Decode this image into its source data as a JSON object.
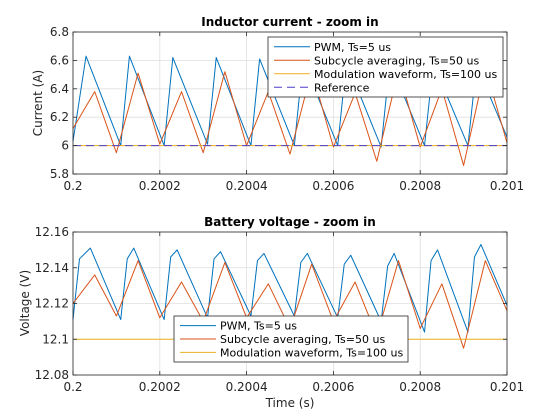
{
  "chart_data": [
    {
      "type": "line",
      "title": "Inductor current - zoom in",
      "xlabel": "",
      "ylabel": "Current (A)",
      "xlim": [
        0.2,
        0.201
      ],
      "ylim": [
        5.8,
        6.8
      ],
      "xticks": [
        "0.2",
        "0.2002",
        "0.2004",
        "0.2006",
        "0.2008",
        "0.201"
      ],
      "xtick_values": [
        0.2,
        0.2002,
        0.2004,
        0.2006,
        0.2008,
        0.201
      ],
      "yticks": [
        "5.8",
        "6",
        "6.2",
        "6.4",
        "6.6",
        "6.8"
      ],
      "ytick_values": [
        5.8,
        6.0,
        6.2,
        6.4,
        6.6,
        6.8
      ],
      "grid": true,
      "legend_position": "top-right",
      "series": [
        {
          "name": "PWM, Ts=5 us",
          "color": "#0072BD",
          "dash": "",
          "x": [
            0.2,
            0.20003,
            0.20011,
            0.20013,
            0.20021,
            0.20023,
            0.20031,
            0.20033,
            0.20041,
            0.20043,
            0.20051,
            0.20053,
            0.20061,
            0.20063,
            0.20071,
            0.20073,
            0.20081,
            0.20083,
            0.20091,
            0.20093,
            0.201
          ],
          "y": [
            6.03,
            6.63,
            6.0,
            6.63,
            6.0,
            6.62,
            6.01,
            6.62,
            6.0,
            6.61,
            6.0,
            6.6,
            6.0,
            6.59,
            5.99,
            6.59,
            6.0,
            6.58,
            6.0,
            6.57,
            6.06
          ]
        },
        {
          "name": "Subcycle averaging, Ts=50 us",
          "color": "#D95319",
          "dash": "",
          "x": [
            0.2,
            0.20005,
            0.2001,
            0.20015,
            0.2002,
            0.20025,
            0.2003,
            0.20035,
            0.2004,
            0.20045,
            0.2005,
            0.20055,
            0.2006,
            0.20065,
            0.2007,
            0.20075,
            0.2008,
            0.20085,
            0.2009,
            0.20095,
            0.201
          ],
          "y": [
            6.12,
            6.38,
            5.95,
            6.51,
            6.01,
            6.38,
            5.95,
            6.52,
            6.0,
            6.38,
            5.94,
            6.53,
            5.99,
            6.37,
            5.89,
            6.53,
            5.99,
            6.4,
            5.86,
            6.55,
            6.02
          ]
        },
        {
          "name": "Modulation waveform, Ts=100 us",
          "color": "#EDB120",
          "dash": "",
          "x": [
            0.2,
            0.201
          ],
          "y": [
            6.0,
            6.0
          ]
        },
        {
          "name": "Reference",
          "color": "#4B3FC9",
          "dash": "8,5",
          "x": [
            0.2,
            0.201
          ],
          "y": [
            6.0,
            6.0
          ]
        }
      ]
    },
    {
      "type": "line",
      "title": "Battery voltage - zoom in",
      "xlabel": "Time (s)",
      "ylabel": "Voltage (V)",
      "xlim": [
        0.2,
        0.201
      ],
      "ylim": [
        12.08,
        12.16
      ],
      "xticks": [
        "0.2",
        "0.2002",
        "0.2004",
        "0.2006",
        "0.2008",
        "0.201"
      ],
      "xtick_values": [
        0.2,
        0.2002,
        0.2004,
        0.2006,
        0.2008,
        0.201
      ],
      "yticks": [
        "12.08",
        "12.1",
        "12.12",
        "12.14",
        "12.16"
      ],
      "ytick_values": [
        12.08,
        12.1,
        12.12,
        12.14,
        12.16
      ],
      "grid": true,
      "legend_position": "bottom-center",
      "series": [
        {
          "name": "PWM, Ts=5 us",
          "color": "#0072BD",
          "dash": "",
          "x": [
            0.2,
            0.200015,
            0.20004,
            0.20011,
            0.200125,
            0.20014,
            0.20021,
            0.200225,
            0.20024,
            0.20031,
            0.200325,
            0.20034,
            0.20041,
            0.200425,
            0.20044,
            0.20051,
            0.200525,
            0.20054,
            0.20061,
            0.200625,
            0.20064,
            0.20071,
            0.200725,
            0.20074,
            0.20081,
            0.200825,
            0.20084,
            0.20091,
            0.200925,
            0.20094,
            0.201
          ],
          "y": [
            12.111,
            12.145,
            12.151,
            12.111,
            12.145,
            12.151,
            12.111,
            12.146,
            12.15,
            12.112,
            12.145,
            12.149,
            12.113,
            12.144,
            12.148,
            12.113,
            12.143,
            12.148,
            12.112,
            12.142,
            12.147,
            12.11,
            12.141,
            12.148,
            12.104,
            12.144,
            12.15,
            12.104,
            12.146,
            12.153,
            12.119
          ]
        },
        {
          "name": "Subcycle averaging, Ts=50 us",
          "color": "#D95319",
          "dash": "",
          "x": [
            0.2,
            0.20005,
            0.2001,
            0.20015,
            0.2002,
            0.20025,
            0.2003,
            0.20035,
            0.2004,
            0.20045,
            0.2005,
            0.20055,
            0.2006,
            0.20065,
            0.2007,
            0.20075,
            0.2008,
            0.20085,
            0.2009,
            0.20095,
            0.201
          ],
          "y": [
            12.12,
            12.136,
            12.113,
            12.144,
            12.112,
            12.132,
            12.11,
            12.143,
            12.112,
            12.131,
            12.106,
            12.142,
            12.11,
            12.132,
            12.102,
            12.144,
            12.106,
            12.131,
            12.095,
            12.144,
            12.116
          ]
        },
        {
          "name": "Modulation waveform, Ts=100 us",
          "color": "#EDB120",
          "dash": "",
          "x": [
            0.2,
            0.201
          ],
          "y": [
            12.1,
            12.1
          ]
        }
      ]
    }
  ]
}
